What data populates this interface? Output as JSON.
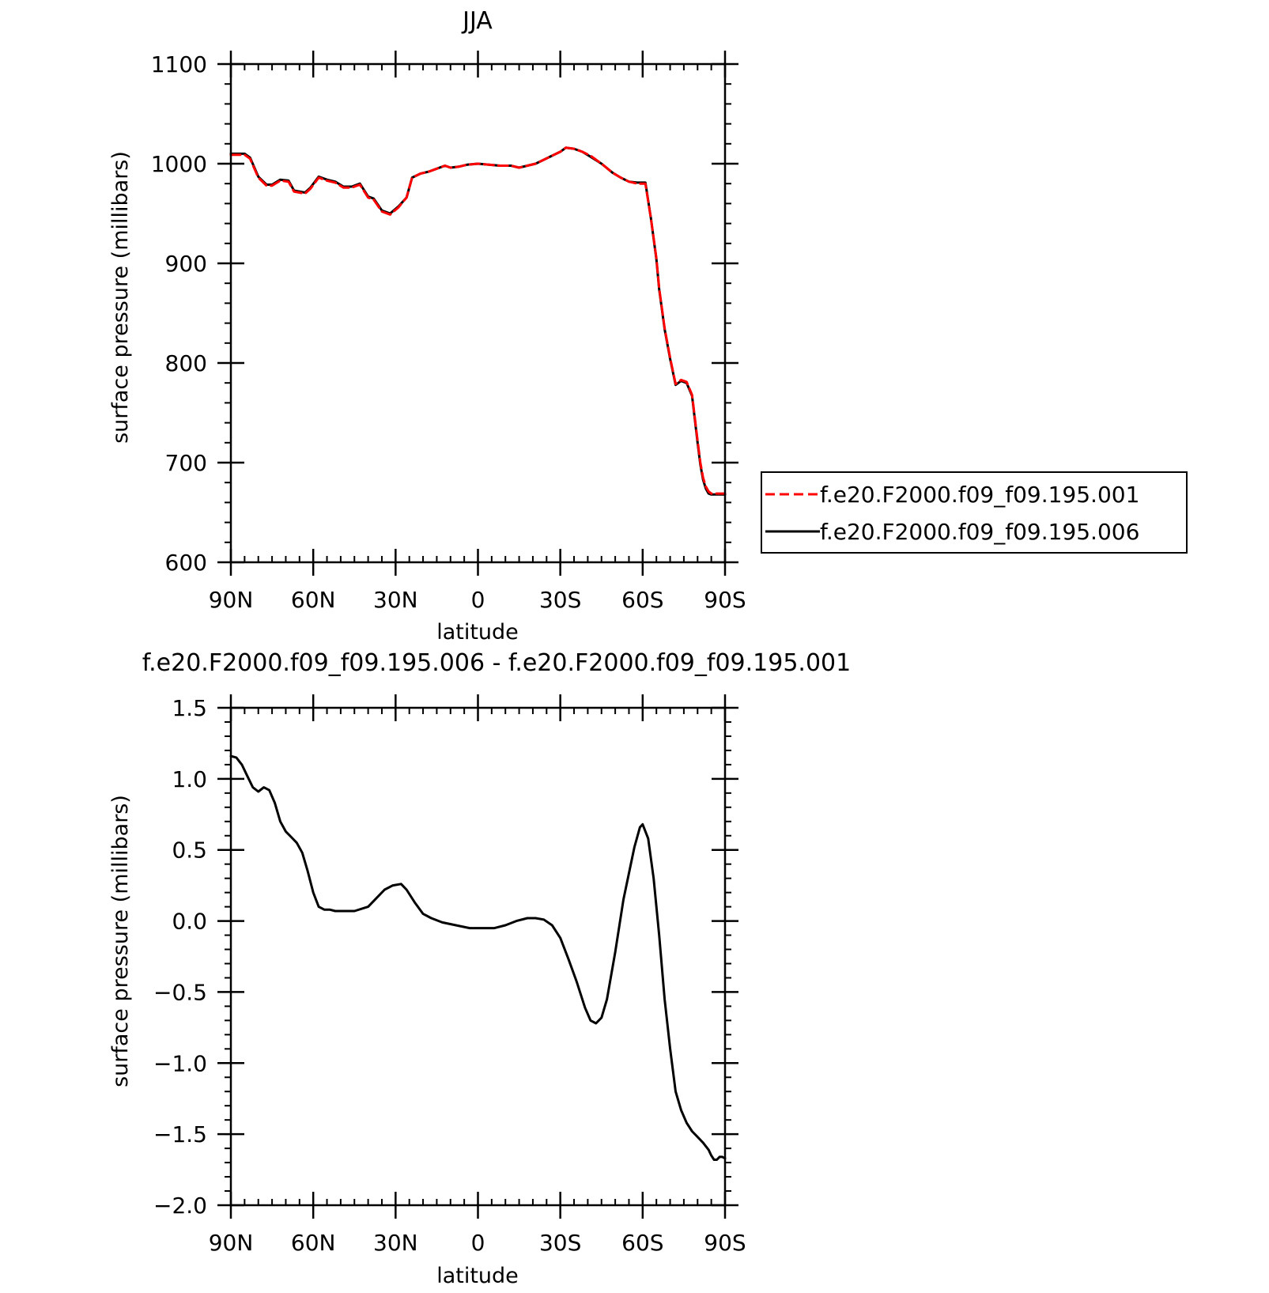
{
  "chart_data": [
    {
      "type": "line",
      "title": "JJA",
      "xlabel": "latitude",
      "ylabel": "surface pressure (millibars)",
      "xlim": [
        90,
        -90
      ],
      "ylim": [
        600,
        1100
      ],
      "xticks": [
        {
          "value": 90,
          "label": "90N"
        },
        {
          "value": 60,
          "label": "60N"
        },
        {
          "value": 30,
          "label": "30N"
        },
        {
          "value": 0,
          "label": "0"
        },
        {
          "value": -30,
          "label": "30S"
        },
        {
          "value": -60,
          "label": "60S"
        },
        {
          "value": -90,
          "label": "90S"
        }
      ],
      "yticks": [
        {
          "value": 600,
          "label": "600"
        },
        {
          "value": 700,
          "label": "700"
        },
        {
          "value": 800,
          "label": "800"
        },
        {
          "value": 900,
          "label": "900"
        },
        {
          "value": 1000,
          "label": "1000"
        },
        {
          "value": 1100,
          "label": "1100"
        }
      ],
      "legend_position": "right",
      "x": [
        90,
        85,
        83,
        80,
        77,
        75,
        72,
        69,
        67,
        63,
        61,
        58,
        55,
        52,
        49,
        46,
        43,
        40,
        38,
        35,
        32,
        29,
        26,
        24,
        21,
        18,
        15,
        12,
        10,
        7,
        4,
        0,
        -4,
        -8,
        -12,
        -15,
        -18,
        -21,
        -24,
        -27,
        -30,
        -32,
        -35,
        -38,
        -41,
        -45,
        -49,
        -52,
        -55,
        -58,
        -61,
        -63,
        -65,
        -66,
        -68,
        -70,
        -72,
        -74,
        -76,
        -78,
        -80,
        -81,
        -82,
        -83,
        -84,
        -85,
        -86,
        -87,
        -88,
        -89,
        -90
      ],
      "series": [
        {
          "name": "f.e20.F2000.f09_f09.195.001",
          "color": "#ff0000",
          "style": "dashed",
          "values": [
            1009,
            1009,
            1005,
            986,
            978,
            978,
            983,
            982,
            972,
            970,
            975,
            986,
            983,
            981,
            976,
            976,
            979,
            966,
            964,
            952,
            949,
            956,
            966,
            986,
            990,
            992,
            995,
            998,
            996,
            997,
            999,
            1000,
            999,
            998,
            998,
            996,
            998,
            1000,
            1004,
            1008,
            1012,
            1016,
            1015,
            1012,
            1008,
            1000,
            991,
            986,
            982,
            980,
            980,
            945,
            905,
            875,
            835,
            805,
            779,
            783,
            781,
            768,
            722,
            700,
            685,
            676,
            671,
            669,
            669,
            669,
            669,
            669,
            669
          ]
        },
        {
          "name": "f.e20.F2000.f09_f09.195.006",
          "color": "#000000",
          "style": "solid",
          "values": [
            1010,
            1010,
            1006,
            987,
            979,
            979,
            984,
            983,
            973,
            971,
            976,
            987,
            984,
            982,
            977,
            977,
            980,
            967,
            965,
            953,
            950,
            957,
            966,
            986,
            990,
            992,
            995,
            998,
            996,
            997,
            999,
            1000,
            999,
            998,
            998,
            996,
            998,
            1000,
            1004,
            1008,
            1012,
            1016,
            1015,
            1012,
            1007,
            1000,
            991,
            986,
            982,
            981,
            981,
            945,
            904,
            874,
            834,
            804,
            778,
            782,
            780,
            767,
            720,
            698,
            683,
            674,
            669,
            668,
            668,
            668,
            668,
            668,
            668
          ]
        }
      ]
    },
    {
      "type": "line",
      "title": "f.e20.F2000.f09_f09.195.006 - f.e20.F2000.f09_f09.195.001",
      "xlabel": "latitude",
      "ylabel": "surface pressure (millibars)",
      "xlim": [
        90,
        -90
      ],
      "ylim": [
        -2.0,
        1.5
      ],
      "xticks": [
        {
          "value": 90,
          "label": "90N"
        },
        {
          "value": 60,
          "label": "60N"
        },
        {
          "value": 30,
          "label": "30N"
        },
        {
          "value": 0,
          "label": "0"
        },
        {
          "value": -30,
          "label": "30S"
        },
        {
          "value": -60,
          "label": "60S"
        },
        {
          "value": -90,
          "label": "90S"
        }
      ],
      "yticks": [
        {
          "value": -2.0,
          "label": "−2.0"
        },
        {
          "value": -1.5,
          "label": "−1.5"
        },
        {
          "value": -1.0,
          "label": "−1.0"
        },
        {
          "value": -0.5,
          "label": "−0.5"
        },
        {
          "value": 0.0,
          "label": "0.0"
        },
        {
          "value": 0.5,
          "label": "0.5"
        },
        {
          "value": 1.0,
          "label": "1.0"
        },
        {
          "value": 1.5,
          "label": "1.5"
        }
      ],
      "x": [
        90,
        88,
        86,
        84,
        82,
        80,
        78,
        76,
        74,
        72,
        70,
        68,
        66,
        64,
        62,
        60,
        58,
        56,
        54,
        52,
        50,
        45,
        40,
        37,
        34,
        31,
        28,
        26,
        23,
        20,
        17,
        13,
        8,
        3,
        0,
        -3,
        -6,
        -10,
        -14,
        -18,
        -21,
        -24,
        -27,
        -30,
        -33,
        -36,
        -39,
        -41,
        -43,
        -45,
        -47,
        -50,
        -53,
        -57,
        -59,
        -60,
        -62,
        -64,
        -66,
        -68,
        -70,
        -72,
        -74,
        -76,
        -78,
        -80,
        -82,
        -84,
        -85,
        -86,
        -87,
        -88,
        -89,
        -90
      ],
      "series": [
        {
          "name": "",
          "color": "#000000",
          "style": "solid",
          "values": [
            1.16,
            1.15,
            1.1,
            1.02,
            0.94,
            0.91,
            0.94,
            0.92,
            0.83,
            0.7,
            0.63,
            0.59,
            0.55,
            0.48,
            0.35,
            0.2,
            0.1,
            0.08,
            0.08,
            0.07,
            0.07,
            0.07,
            0.1,
            0.16,
            0.22,
            0.25,
            0.26,
            0.22,
            0.13,
            0.05,
            0.02,
            -0.01,
            -0.03,
            -0.05,
            -0.05,
            -0.05,
            -0.05,
            -0.03,
            0.0,
            0.02,
            0.02,
            0.01,
            -0.03,
            -0.12,
            -0.27,
            -0.43,
            -0.61,
            -0.7,
            -0.72,
            -0.68,
            -0.55,
            -0.22,
            0.15,
            0.52,
            0.66,
            0.68,
            0.58,
            0.3,
            -0.1,
            -0.55,
            -0.9,
            -1.2,
            -1.33,
            -1.42,
            -1.48,
            -1.52,
            -1.56,
            -1.61,
            -1.65,
            -1.68,
            -1.68,
            -1.66,
            -1.66,
            -1.67
          ]
        }
      ]
    }
  ]
}
